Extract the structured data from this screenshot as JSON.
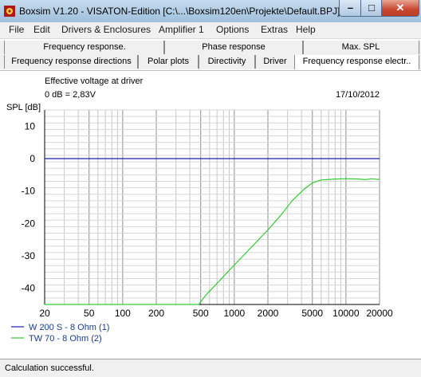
{
  "window": {
    "title": "Boxsim V1.20 - VISATON-Edition [C:\\...\\Boxsim120en\\Projekte\\Default.BPJ]",
    "minimize_glyph": "–",
    "maximize_glyph": "□",
    "close_glyph": "✕"
  },
  "menu": {
    "items": [
      "File",
      "Edit",
      "Drivers & Enclosures",
      "Amplifier 1",
      "Options",
      "Extras",
      "Help"
    ]
  },
  "tabs_row1": [
    "Frequency response.",
    "Phase response",
    "Max. SPL"
  ],
  "tabs_row2": [
    "Frequency response directions",
    "Polar plots",
    "Directivity",
    "Driver",
    "Frequency response electr.."
  ],
  "active_tab": "Frequency response electr..",
  "plot_header": {
    "description": "Effective voltage at driver",
    "reference": "0 dB = 2,83V",
    "date": "17/10/2012"
  },
  "chart_data": {
    "type": "line",
    "ylabel": "SPL [dB]",
    "xlabel": "",
    "xscale": "log",
    "xlim": [
      20,
      20000
    ],
    "ylim": [
      -45,
      15
    ],
    "yticks": [
      10,
      0,
      -10,
      -20,
      -30,
      -40
    ],
    "xticks": [
      20,
      50,
      100,
      200,
      500,
      1000,
      2000,
      5000,
      10000,
      20000
    ],
    "xtick_labels": [
      "20",
      "50",
      "100",
      "200",
      "500",
      "1000",
      "2000",
      "5000",
      "10000",
      "20000"
    ],
    "grid": true,
    "legend_position": "bottom-left",
    "series": [
      {
        "name": "W 200 S - 8 Ohm (1)",
        "color": "#1e1eaa",
        "x": [
          20,
          20000
        ],
        "y": [
          0,
          0
        ]
      },
      {
        "name": "TW 70 - 8 Ohm (2)",
        "color": "#33cc33",
        "x": [
          20,
          300,
          480,
          560,
          700,
          900,
          1200,
          1600,
          2000,
          2600,
          3300,
          4200,
          5000,
          6000,
          8000,
          10000,
          13000,
          15000,
          17000,
          19000,
          20000
        ],
        "y": [
          -45,
          -45,
          -45,
          -42,
          -38.5,
          -34.5,
          -30,
          -25.5,
          -22,
          -17.5,
          -13,
          -9.5,
          -7.5,
          -6.6,
          -6.3,
          -6.2,
          -6.3,
          -6.5,
          -6.2,
          -6.4,
          -6.4
        ]
      }
    ]
  },
  "status": {
    "message": "Calculation successful."
  }
}
